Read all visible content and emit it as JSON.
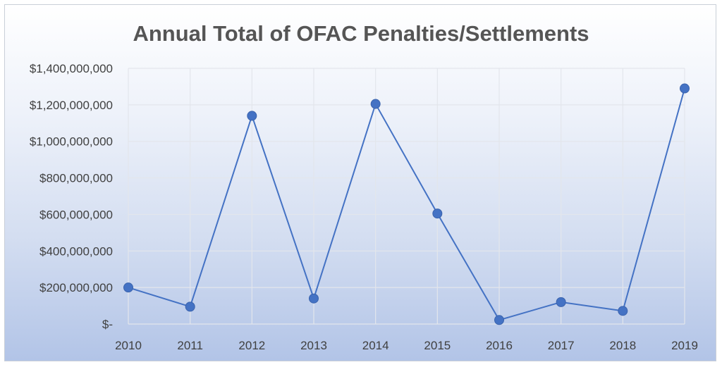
{
  "chart_data": {
    "type": "line",
    "title": "Annual Total of OFAC Penalties/Settlements",
    "xlabel": "",
    "ylabel": "",
    "categories": [
      "2010",
      "2011",
      "2012",
      "2013",
      "2014",
      "2015",
      "2016",
      "2017",
      "2018",
      "2019"
    ],
    "series": [
      {
        "values": [
          200000000,
          95000000,
          1140000000,
          140000000,
          1205000000,
          605000000,
          22000000,
          120000000,
          72000000,
          1290000000
        ]
      }
    ],
    "ylim": [
      0,
      1400000000
    ],
    "yticks": [
      0,
      200000000,
      400000000,
      600000000,
      800000000,
      1000000000,
      1200000000,
      1400000000
    ],
    "ytick_labels": [
      "$-",
      "$200,000,000",
      "$400,000,000",
      "$600,000,000",
      "$800,000,000",
      "$1,000,000,000",
      "$1,200,000,000",
      "$1,400,000,000"
    ],
    "grid": true,
    "legend": "none",
    "colors": {
      "line": "#4472c4",
      "marker": "#4472c4",
      "grid": "#e3e6ec"
    }
  }
}
